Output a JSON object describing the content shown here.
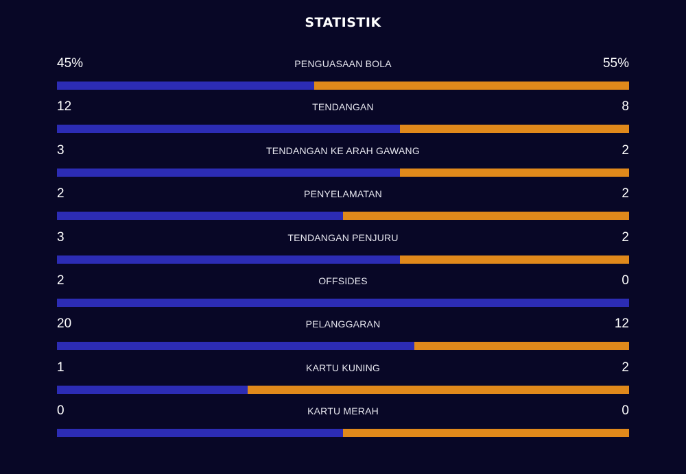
{
  "title": "STATISTIK",
  "colors": {
    "background": "#080726",
    "home": "#2c2cb4",
    "away": "#e0891b"
  },
  "stats": [
    {
      "label": "PENGUASAAN BOLA",
      "home": "45%",
      "away": "55%",
      "home_share": 0.45
    },
    {
      "label": "TENDANGAN",
      "home": "12",
      "away": "8",
      "home_share": 0.6
    },
    {
      "label": "TENDANGAN KE ARAH GAWANG",
      "home": "3",
      "away": "2",
      "home_share": 0.6
    },
    {
      "label": "PENYELAMATAN",
      "home": "2",
      "away": "2",
      "home_share": 0.5
    },
    {
      "label": "TENDANGAN PENJURU",
      "home": "3",
      "away": "2",
      "home_share": 0.6
    },
    {
      "label": "OFFSIDES",
      "home": "2",
      "away": "0",
      "home_share": 1.0
    },
    {
      "label": "PELANGGARAN",
      "home": "20",
      "away": "12",
      "home_share": 0.625
    },
    {
      "label": "KARTU KUNING",
      "home": "1",
      "away": "2",
      "home_share": 0.3333
    },
    {
      "label": "KARTU MERAH",
      "home": "0",
      "away": "0",
      "home_share": 0.5
    }
  ]
}
